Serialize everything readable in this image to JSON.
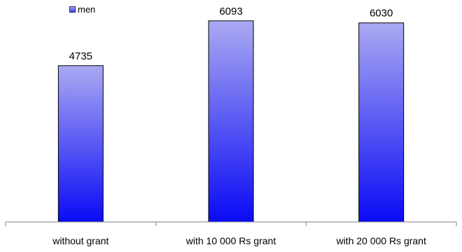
{
  "chart_data": {
    "type": "bar",
    "categories": [
      "without grant",
      "with 10 000 Rs grant",
      "with 20 000 Rs grant"
    ],
    "series": [
      {
        "name": "men",
        "values": [
          4735,
          6093,
          6030
        ]
      }
    ],
    "data_labels": [
      "4735",
      "6093",
      "6030"
    ],
    "ylim": [
      0,
      6300
    ],
    "grid": false,
    "legend": "top-left",
    "colors": {
      "bar_top": "#aaa9f2",
      "bar_bottom": "#0a0af5",
      "bar_border": "#000000",
      "axis": "#7f7f7f"
    }
  }
}
